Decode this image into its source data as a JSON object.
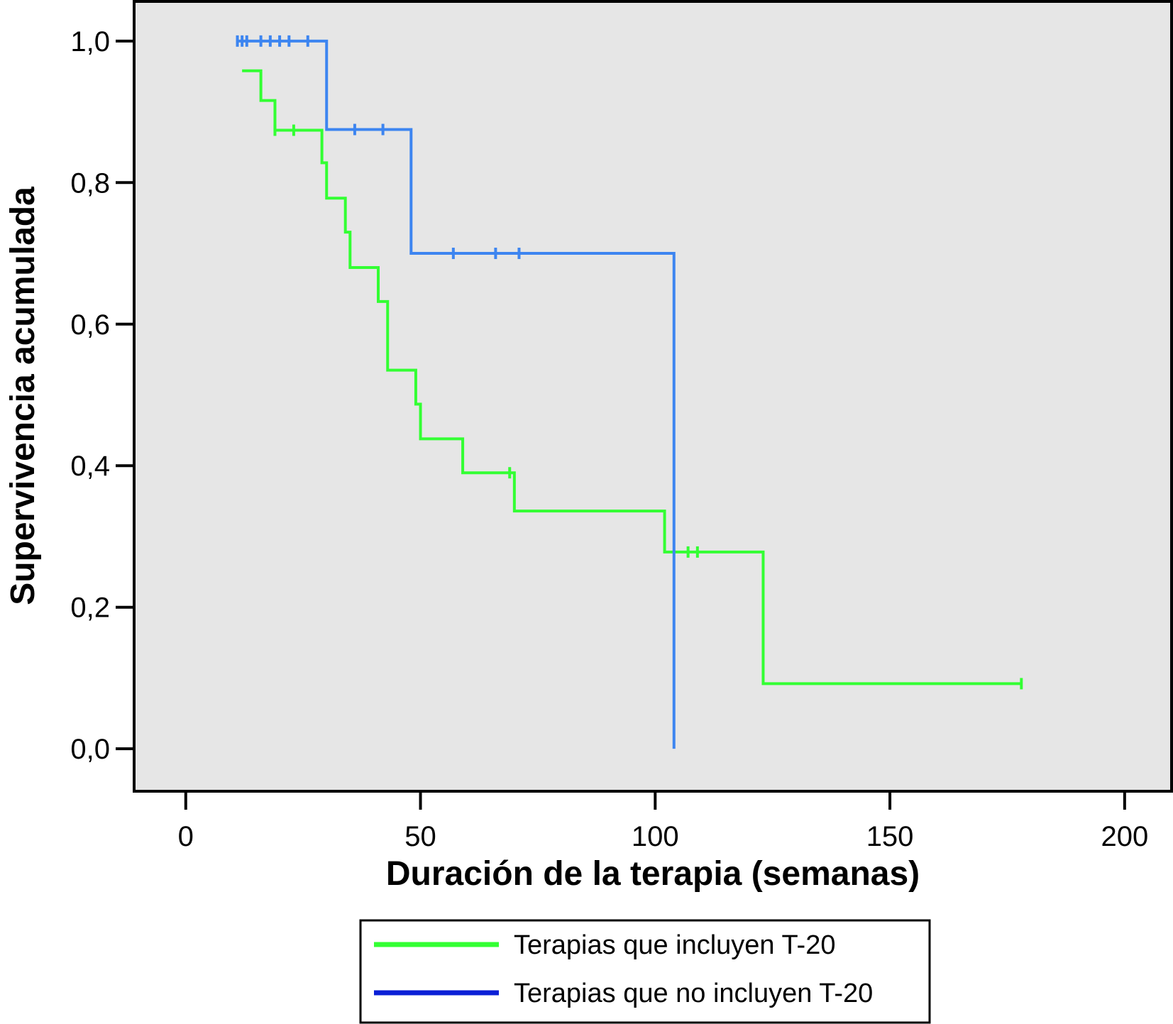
{
  "chart_data": {
    "type": "line",
    "step": true,
    "xlabel": "Duración de la terapia (semanas)",
    "ylabel": "Supervivencia acumulada",
    "xlim": [
      -11,
      210
    ],
    "ylim": [
      -0.06,
      1.056
    ],
    "x_ticks": [
      0,
      50,
      100,
      150,
      200
    ],
    "x_tick_labels": [
      "0",
      "50",
      "100",
      "150",
      "200"
    ],
    "y_ticks": [
      0,
      0.2,
      0.4,
      0.6,
      0.8,
      1.0
    ],
    "y_tick_labels": [
      "0,0",
      "0,2",
      "0,4",
      "0,6",
      "0,8",
      "1,0"
    ],
    "grid": false,
    "plot_background": "#e6e6e6",
    "legend_position": "bottom",
    "series": [
      {
        "name": "Terapias que incluyen T-20",
        "color": "#33ff33",
        "legend_color": "#33ff33",
        "start_x": 12,
        "steps": [
          [
            12,
            0.958
          ],
          [
            16,
            0.916
          ],
          [
            19,
            0.874
          ],
          [
            29,
            0.828
          ],
          [
            30,
            0.778
          ],
          [
            34,
            0.73
          ],
          [
            35,
            0.68
          ],
          [
            41,
            0.632
          ],
          [
            43,
            0.535
          ],
          [
            49,
            0.487
          ],
          [
            50,
            0.438
          ],
          [
            59,
            0.39
          ],
          [
            70,
            0.336
          ],
          [
            102,
            0.278
          ],
          [
            123,
            0.092
          ]
        ],
        "end_x": 178,
        "censored": [
          [
            19,
            0.874
          ],
          [
            23,
            0.874
          ],
          [
            69,
            0.39
          ],
          [
            107,
            0.278
          ],
          [
            109,
            0.278
          ],
          [
            178,
            0.092
          ]
        ]
      },
      {
        "name": "Terapias que no incluyen T-20",
        "color": "#3d85f0",
        "legend_color": "#0a1fd6",
        "start_x": 11,
        "steps": [
          [
            11,
            1.0
          ],
          [
            30,
            0.875
          ],
          [
            48,
            0.7
          ],
          [
            104,
            0.0
          ]
        ],
        "end_x": 104,
        "censored": [
          [
            11,
            1.0
          ],
          [
            12,
            1.0
          ],
          [
            13,
            1.0
          ],
          [
            16,
            1.0
          ],
          [
            18,
            1.0
          ],
          [
            20,
            1.0
          ],
          [
            22,
            1.0
          ],
          [
            26,
            1.0
          ],
          [
            36,
            0.875
          ],
          [
            42,
            0.875
          ],
          [
            57,
            0.7
          ],
          [
            66,
            0.7
          ],
          [
            71,
            0.7
          ]
        ]
      }
    ]
  }
}
